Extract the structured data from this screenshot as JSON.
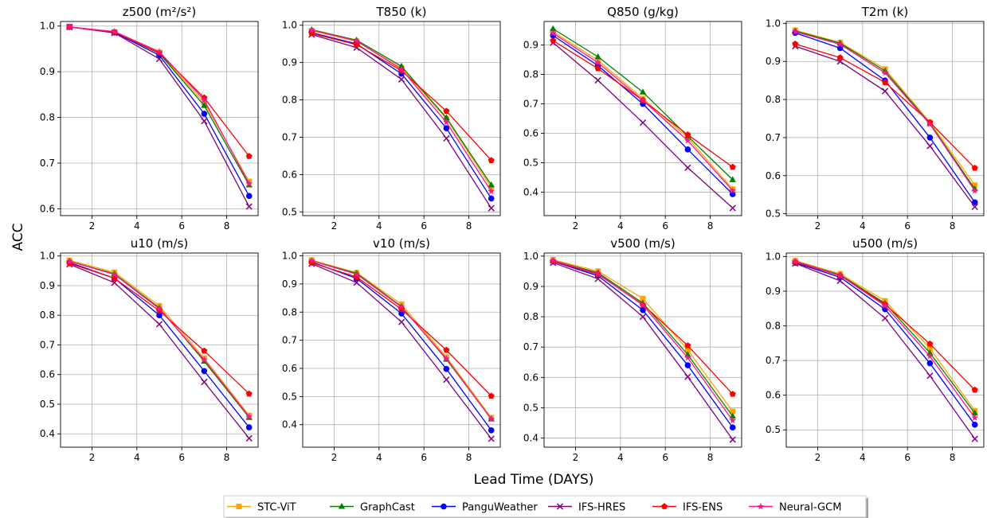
{
  "figure": {
    "ylabel": "ACC",
    "xlabel": "Lead Time (DAYS)"
  },
  "legend": {
    "placement": "bottom-center",
    "entries": [
      "STC-ViT",
      "GraphCast",
      "PanguWeather",
      "IFS-HRES",
      "IFS-ENS",
      "Neural-GCM"
    ]
  },
  "series_styles": [
    {
      "name": "STC-ViT",
      "color": "#FFA500",
      "marker": "square"
    },
    {
      "name": "GraphCast",
      "color": "#008000",
      "marker": "triangle"
    },
    {
      "name": "PanguWeather",
      "color": "#0000FF",
      "marker": "circle"
    },
    {
      "name": "IFS-HRES",
      "color": "#800080",
      "marker": "x"
    },
    {
      "name": "IFS-ENS",
      "color": "#FF0000",
      "marker": "pentagon"
    },
    {
      "name": "Neural-GCM",
      "color": "#FF1493",
      "marker": "star"
    }
  ],
  "chart_data": [
    {
      "type": "line",
      "title": "z500 (m²/s²)",
      "grid": true,
      "x": [
        1,
        3,
        5,
        7,
        9
      ],
      "xlim": [
        0.6,
        9.4
      ],
      "ylim": [
        0.585,
        1.01
      ],
      "xticks": [
        2,
        4,
        6,
        8
      ],
      "yticks": [
        0.6,
        0.7,
        0.8,
        0.9,
        1.0
      ],
      "series": [
        {
          "name": "STC-ViT",
          "values": [
            0.998,
            0.987,
            0.942,
            0.832,
            0.66
          ]
        },
        {
          "name": "GraphCast",
          "values": [
            0.998,
            0.987,
            0.94,
            0.826,
            0.652
          ]
        },
        {
          "name": "PanguWeather",
          "values": [
            0.998,
            0.986,
            0.936,
            0.808,
            0.628
          ]
        },
        {
          "name": "IFS-HRES",
          "values": [
            0.998,
            0.985,
            0.928,
            0.792,
            0.605
          ]
        },
        {
          "name": "IFS-ENS",
          "values": [
            0.998,
            0.987,
            0.941,
            0.843,
            0.715
          ]
        },
        {
          "name": "Neural-GCM",
          "values": [
            0.998,
            0.988,
            0.944,
            0.838,
            0.655
          ]
        }
      ]
    },
    {
      "type": "line",
      "title": "T850 (k)",
      "grid": true,
      "x": [
        1,
        3,
        5,
        7,
        9
      ],
      "xlim": [
        0.6,
        9.4
      ],
      "ylim": [
        0.49,
        1.01
      ],
      "xticks": [
        2,
        4,
        6,
        8
      ],
      "yticks": [
        0.5,
        0.6,
        0.7,
        0.8,
        0.9,
        1.0
      ],
      "series": [
        {
          "name": "STC-ViT",
          "values": [
            0.985,
            0.957,
            0.885,
            0.75,
            0.565
          ]
        },
        {
          "name": "GraphCast",
          "values": [
            0.988,
            0.96,
            0.89,
            0.752,
            0.572
          ]
        },
        {
          "name": "PanguWeather",
          "values": [
            0.98,
            0.95,
            0.87,
            0.724,
            0.536
          ]
        },
        {
          "name": "IFS-HRES",
          "values": [
            0.975,
            0.94,
            0.855,
            0.697,
            0.51
          ]
        },
        {
          "name": "IFS-ENS",
          "values": [
            0.978,
            0.948,
            0.878,
            0.77,
            0.638
          ]
        },
        {
          "name": "Neural-GCM",
          "values": [
            0.987,
            0.958,
            0.882,
            0.74,
            0.555
          ]
        }
      ]
    },
    {
      "type": "line",
      "title": "Q850 (g/kg)",
      "grid": true,
      "x": [
        1,
        3,
        5,
        7,
        9
      ],
      "xlim": [
        0.6,
        9.4
      ],
      "ylim": [
        0.32,
        0.98
      ],
      "xticks": [
        2,
        4,
        6,
        8
      ],
      "yticks": [
        0.4,
        0.5,
        0.6,
        0.7,
        0.8,
        0.9
      ],
      "series": [
        {
          "name": "STC-ViT",
          "values": [
            0.945,
            0.848,
            0.718,
            0.585,
            0.41
          ]
        },
        {
          "name": "GraphCast",
          "values": [
            0.955,
            0.86,
            0.74,
            0.59,
            0.442
          ]
        },
        {
          "name": "PanguWeather",
          "values": [
            0.932,
            0.83,
            0.7,
            0.545,
            0.393
          ]
        },
        {
          "name": "IFS-HRES",
          "values": [
            0.908,
            0.78,
            0.636,
            0.483,
            0.346
          ]
        },
        {
          "name": "IFS-ENS",
          "values": [
            0.915,
            0.82,
            0.712,
            0.595,
            0.485
          ]
        },
        {
          "name": "Neural-GCM",
          "values": [
            0.94,
            0.84,
            0.712,
            0.575,
            0.405
          ]
        }
      ]
    },
    {
      "type": "line",
      "title": "T2m (k)",
      "grid": true,
      "x": [
        1,
        3,
        5,
        7,
        9
      ],
      "xlim": [
        0.6,
        9.4
      ],
      "ylim": [
        0.495,
        1.005
      ],
      "xticks": [
        2,
        4,
        6,
        8
      ],
      "yticks": [
        0.5,
        0.6,
        0.7,
        0.8,
        0.9,
        1.0
      ],
      "series": [
        {
          "name": "STC-ViT",
          "values": [
            0.982,
            0.95,
            0.88,
            0.74,
            0.575
          ]
        },
        {
          "name": "GraphCast",
          "values": [
            0.98,
            0.948,
            0.875,
            0.737,
            0.565
          ]
        },
        {
          "name": "PanguWeather",
          "values": [
            0.975,
            0.935,
            0.85,
            0.7,
            0.53
          ]
        },
        {
          "name": "IFS-HRES",
          "values": [
            0.94,
            0.9,
            0.822,
            0.678,
            0.518
          ]
        },
        {
          "name": "IFS-ENS",
          "values": [
            0.946,
            0.91,
            0.845,
            0.74,
            0.62
          ]
        },
        {
          "name": "Neural-GCM",
          "values": [
            0.978,
            0.945,
            0.87,
            0.735,
            0.56
          ]
        }
      ]
    },
    {
      "type": "line",
      "title": "u10 (m/s)",
      "grid": true,
      "x": [
        1,
        3,
        5,
        7,
        9
      ],
      "xlim": [
        0.6,
        9.4
      ],
      "ylim": [
        0.355,
        1.01
      ],
      "xticks": [
        2,
        4,
        6,
        8
      ],
      "yticks": [
        0.4,
        0.5,
        0.6,
        0.7,
        0.8,
        0.9,
        1.0
      ],
      "series": [
        {
          "name": "STC-ViT",
          "values": [
            0.985,
            0.945,
            0.832,
            0.655,
            0.462
          ]
        },
        {
          "name": "GraphCast",
          "values": [
            0.982,
            0.94,
            0.825,
            0.645,
            0.455
          ]
        },
        {
          "name": "PanguWeather",
          "values": [
            0.978,
            0.925,
            0.8,
            0.612,
            0.422
          ]
        },
        {
          "name": "IFS-HRES",
          "values": [
            0.972,
            0.91,
            0.77,
            0.575,
            0.385
          ]
        },
        {
          "name": "IFS-ENS",
          "values": [
            0.975,
            0.925,
            0.815,
            0.68,
            0.535
          ]
        },
        {
          "name": "Neural-GCM",
          "values": [
            0.982,
            0.938,
            0.822,
            0.65,
            0.458
          ]
        }
      ]
    },
    {
      "type": "line",
      "title": "v10 (m/s)",
      "grid": true,
      "x": [
        1,
        3,
        5,
        7,
        9
      ],
      "xlim": [
        0.6,
        9.4
      ],
      "ylim": [
        0.32,
        1.01
      ],
      "xticks": [
        2,
        4,
        6,
        8
      ],
      "yticks": [
        0.4,
        0.5,
        0.6,
        0.7,
        0.8,
        0.9,
        1.0
      ],
      "series": [
        {
          "name": "STC-ViT",
          "values": [
            0.985,
            0.94,
            0.828,
            0.64,
            0.425
          ]
        },
        {
          "name": "GraphCast",
          "values": [
            0.982,
            0.938,
            0.82,
            0.632,
            0.42
          ]
        },
        {
          "name": "PanguWeather",
          "values": [
            0.978,
            0.92,
            0.795,
            0.598,
            0.38
          ]
        },
        {
          "name": "IFS-HRES",
          "values": [
            0.972,
            0.905,
            0.765,
            0.56,
            0.35
          ]
        },
        {
          "name": "IFS-ENS",
          "values": [
            0.975,
            0.925,
            0.81,
            0.665,
            0.502
          ]
        },
        {
          "name": "Neural-GCM",
          "values": [
            0.982,
            0.935,
            0.818,
            0.635,
            0.42
          ]
        }
      ]
    },
    {
      "type": "line",
      "title": "v500 (m/s)",
      "grid": true,
      "x": [
        1,
        3,
        5,
        7,
        9
      ],
      "xlim": [
        0.6,
        9.4
      ],
      "ylim": [
        0.37,
        1.01
      ],
      "xticks": [
        2,
        4,
        6,
        8
      ],
      "yticks": [
        0.4,
        0.5,
        0.6,
        0.7,
        0.8,
        0.9,
        1.0
      ],
      "series": [
        {
          "name": "STC-ViT",
          "values": [
            0.988,
            0.95,
            0.86,
            0.69,
            0.488
          ]
        },
        {
          "name": "GraphCast",
          "values": [
            0.985,
            0.945,
            0.845,
            0.675,
            0.472
          ]
        },
        {
          "name": "PanguWeather",
          "values": [
            0.982,
            0.935,
            0.822,
            0.64,
            0.435
          ]
        },
        {
          "name": "IFS-HRES",
          "values": [
            0.978,
            0.925,
            0.8,
            0.602,
            0.395
          ]
        },
        {
          "name": "IFS-ENS",
          "values": [
            0.983,
            0.94,
            0.84,
            0.705,
            0.545
          ]
        },
        {
          "name": "Neural-GCM",
          "values": [
            0.985,
            0.942,
            0.838,
            0.665,
            0.458
          ]
        }
      ]
    },
    {
      "type": "line",
      "title": "u500 (m/s)",
      "grid": true,
      "x": [
        1,
        3,
        5,
        7,
        9
      ],
      "xlim": [
        0.6,
        9.4
      ],
      "ylim": [
        0.45,
        1.01
      ],
      "xticks": [
        2,
        4,
        6,
        8
      ],
      "yticks": [
        0.5,
        0.6,
        0.7,
        0.8,
        0.9,
        1.0
      ],
      "series": [
        {
          "name": "STC-ViT",
          "values": [
            0.988,
            0.95,
            0.872,
            0.735,
            0.555
          ]
        },
        {
          "name": "GraphCast",
          "values": [
            0.986,
            0.947,
            0.865,
            0.722,
            0.548
          ]
        },
        {
          "name": "PanguWeather",
          "values": [
            0.982,
            0.94,
            0.848,
            0.692,
            0.515
          ]
        },
        {
          "name": "IFS-HRES",
          "values": [
            0.98,
            0.93,
            0.822,
            0.656,
            0.474
          ]
        },
        {
          "name": "IFS-ENS",
          "values": [
            0.984,
            0.945,
            0.862,
            0.748,
            0.615
          ]
        },
        {
          "name": "Neural-GCM",
          "values": [
            0.986,
            0.945,
            0.858,
            0.712,
            0.535
          ]
        }
      ]
    }
  ]
}
